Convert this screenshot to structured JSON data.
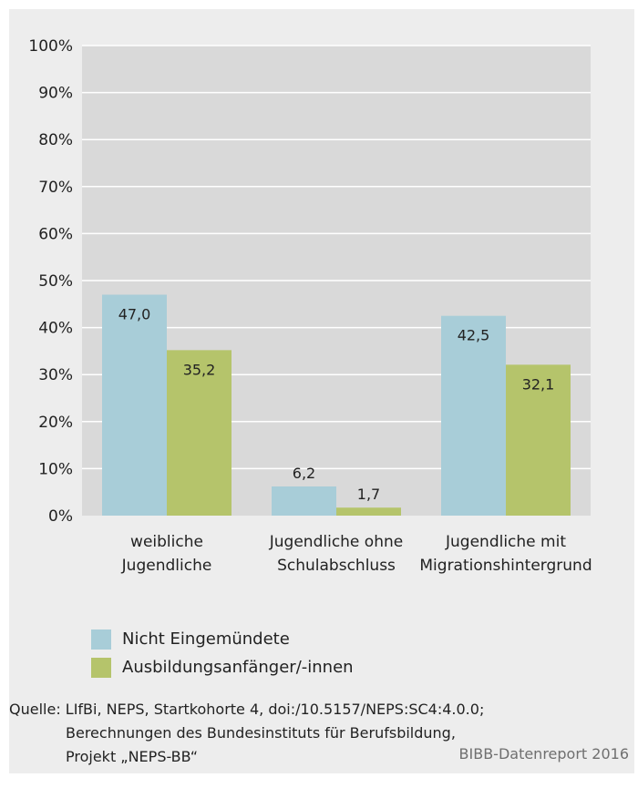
{
  "chart_data": {
    "type": "bar",
    "categories": [
      [
        "weibliche",
        "Jugendliche"
      ],
      [
        "Jugendliche ohne",
        "Schulabschluss"
      ],
      [
        "Jugendliche mit",
        "Migrationshintergrund"
      ]
    ],
    "series": [
      {
        "name": "Nicht Eingemündete",
        "color": "#a8cdd8",
        "values": [
          47.0,
          6.2,
          42.5
        ],
        "labels": [
          "47,0",
          "6,2",
          "42,5"
        ]
      },
      {
        "name": "Ausbildungsanfänger/-innen",
        "color": "#b5c46b",
        "values": [
          35.2,
          1.7,
          32.1
        ],
        "labels": [
          "35,2",
          "1,7",
          "32,1"
        ]
      }
    ],
    "ylim": [
      0,
      100
    ],
    "yticks": [
      "0%",
      "10%",
      "20%",
      "30%",
      "40%",
      "50%",
      "60%",
      "70%",
      "80%",
      "90%",
      "100%"
    ],
    "grid": true,
    "legend_position": "bottom-left"
  },
  "source": {
    "line1": "Quelle: LIfBi, NEPS, Startkohorte 4, doi:/10.5157/NEPS:SC4:4.0.0;",
    "line2": "Berechnungen des Bundesinstituts für Berufsbildung,",
    "line3": "Projekt „NEPS-BB“"
  },
  "credit": "BIBB-Datenreport 2016"
}
